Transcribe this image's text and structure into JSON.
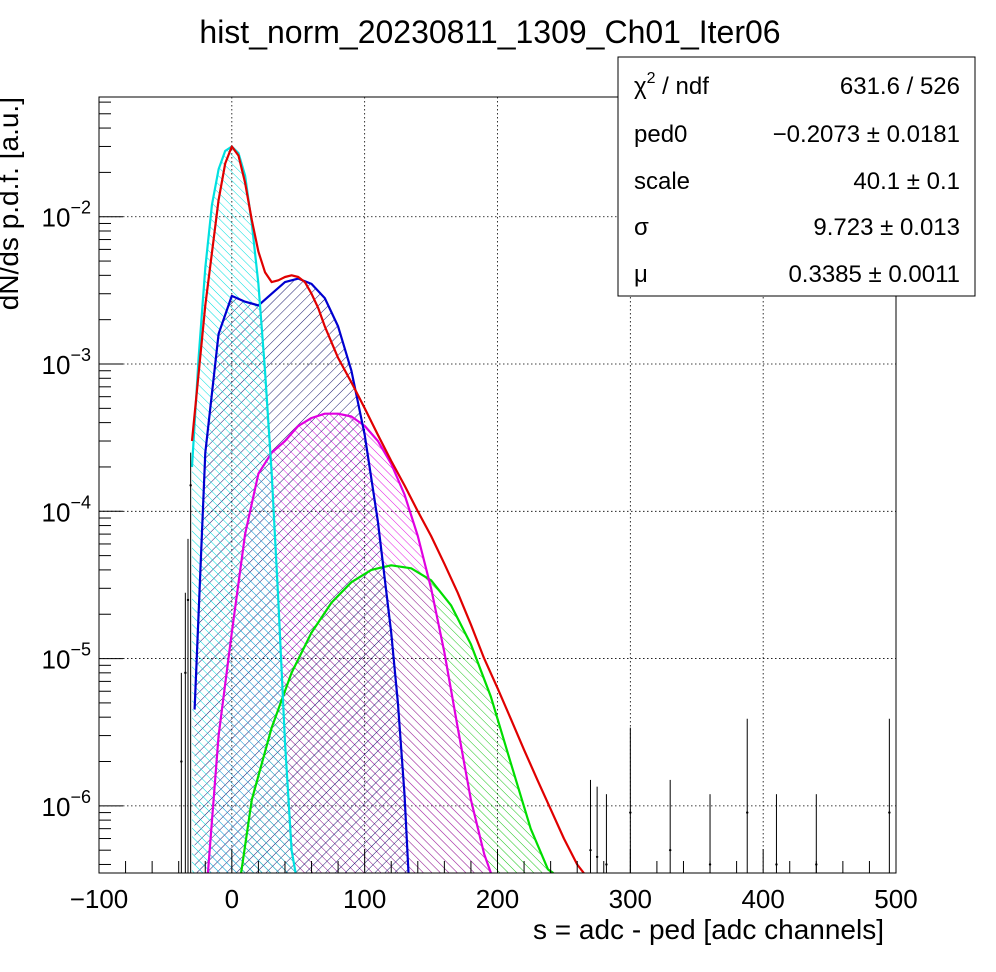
{
  "chart_data": {
    "type": "line",
    "title": "hist_norm_20230811_1309_Ch01_Iter06",
    "xlabel": "s = adc - ped [adc channels]",
    "ylabel": "dN/ds p.d.f. [a.u.]",
    "xlim": [
      -100,
      500
    ],
    "ylim": [
      3.5e-07,
      0.065
    ],
    "yscale": "log",
    "grid": true,
    "x_ticks": [
      {
        "value": -100,
        "label": "−100"
      },
      {
        "value": 0,
        "label": "0"
      },
      {
        "value": 100,
        "label": "100"
      },
      {
        "value": 200,
        "label": "200"
      },
      {
        "value": 300,
        "label": "300"
      },
      {
        "value": 400,
        "label": "400"
      },
      {
        "value": 500,
        "label": "500"
      }
    ],
    "y_ticks": [
      {
        "value": 0.01,
        "base": "10",
        "exp": "−2"
      },
      {
        "value": 0.001,
        "base": "10",
        "exp": "−3"
      },
      {
        "value": 0.0001,
        "base": "10",
        "exp": "−4"
      },
      {
        "value": 1e-05,
        "base": "10",
        "exp": "−5"
      },
      {
        "value": 1e-06,
        "base": "10",
        "exp": "−6"
      }
    ],
    "series": [
      {
        "key": "total",
        "color": "#e00000",
        "hatch": false,
        "x": [
          -30,
          -20,
          -10,
          -5,
          0,
          5,
          10,
          15,
          20,
          25,
          30,
          35,
          40,
          45,
          50,
          55,
          60,
          65,
          70,
          80,
          90,
          100,
          110,
          120,
          130,
          140,
          150,
          160,
          170,
          180,
          190,
          200,
          210,
          220,
          230,
          240,
          250,
          260,
          265
        ],
        "y": [
          0.0003,
          0.0025,
          0.013,
          0.023,
          0.03,
          0.026,
          0.017,
          0.0095,
          0.0058,
          0.0042,
          0.0036,
          0.0037,
          0.0039,
          0.004,
          0.0039,
          0.0036,
          0.003,
          0.0024,
          0.0018,
          0.0011,
          0.00075,
          0.0005,
          0.00033,
          0.00022,
          0.00015,
          0.0001,
          6.8e-05,
          4.4e-05,
          2.8e-05,
          1.7e-05,
          1e-05,
          6.3e-06,
          3.9e-06,
          2.4e-06,
          1.5e-06,
          9.5e-07,
          6e-07,
          4e-07,
          3.5e-07
        ]
      },
      {
        "key": "ped",
        "color": "#00e0e0",
        "hatch": true,
        "x": [
          -30,
          -25,
          -20,
          -15,
          -10,
          -5,
          0,
          5,
          10,
          15,
          20,
          25,
          30,
          35,
          40,
          45,
          48
        ],
        "y": [
          0.0002,
          0.0011,
          0.0045,
          0.012,
          0.021,
          0.028,
          0.03,
          0.027,
          0.019,
          0.009,
          0.0035,
          0.0009,
          0.00018,
          2.5e-05,
          2.7e-06,
          5e-07,
          3.5e-07
        ]
      },
      {
        "key": "pe1",
        "color": "#0000d0",
        "hatch": true,
        "x": [
          -28,
          -20,
          -10,
          0,
          10,
          20,
          30,
          40,
          50,
          60,
          70,
          80,
          90,
          100,
          110,
          120,
          125,
          130,
          133
        ],
        "y": [
          4.5e-06,
          0.00025,
          0.0016,
          0.0029,
          0.00265,
          0.0025,
          0.003,
          0.0036,
          0.0038,
          0.0035,
          0.0028,
          0.0018,
          0.0009,
          0.00033,
          8.5e-05,
          1.5e-05,
          5e-06,
          1.2e-06,
          3.5e-07
        ]
      },
      {
        "key": "pe2",
        "color": "#e000e0",
        "hatch": true,
        "x": [
          -18,
          -10,
          0,
          10,
          20,
          30,
          40,
          50,
          60,
          70,
          80,
          90,
          100,
          110,
          120,
          130,
          140,
          150,
          160,
          170,
          180,
          190,
          195
        ],
        "y": [
          3.5e-07,
          3e-06,
          1.5e-05,
          7e-05,
          0.00018,
          0.00025,
          0.0003,
          0.00038,
          0.00043,
          0.00046,
          0.00046,
          0.00044,
          0.00038,
          0.0003,
          0.00021,
          0.00013,
          6.8e-05,
          3e-05,
          1.1e-05,
          3.4e-06,
          1.1e-06,
          4.7e-07,
          3.5e-07
        ]
      },
      {
        "key": "pe3",
        "color": "#00dd00",
        "hatch": true,
        "x": [
          7,
          15,
          30,
          45,
          60,
          75,
          90,
          105,
          120,
          135,
          150,
          165,
          180,
          195,
          210,
          225,
          238,
          242
        ],
        "y": [
          3.5e-07,
          1.1e-06,
          3.4e-06,
          8e-06,
          1.5e-05,
          2.4e-05,
          3.3e-05,
          4e-05,
          4.3e-05,
          4.1e-05,
          3.4e-05,
          2.3e-05,
          1.25e-05,
          5.5e-06,
          1.95e-06,
          7e-07,
          3.7e-07,
          3.5e-07
        ]
      }
    ],
    "data_points": {
      "x": [
        -38,
        -35,
        -33,
        -31,
        270,
        275,
        282,
        300,
        330,
        360,
        388,
        410,
        440,
        495
      ],
      "y": [
        2e-06,
        8e-06,
        2.5e-05,
        0.00015,
        5e-07,
        4.5e-07,
        4e-07,
        9e-07,
        5e-07,
        4e-07,
        9e-07,
        4e-07,
        4e-07,
        9e-07
      ],
      "err_hi": [
        6e-06,
        2e-05,
        4e-05,
        0.0001,
        1e-06,
        9e-07,
        8e-07,
        2.5e-06,
        1e-06,
        8e-07,
        3e-06,
        8e-07,
        8e-07,
        3e-06
      ]
    }
  },
  "stats_box": {
    "rows": [
      {
        "label_main": "χ",
        "label_sup": "2",
        "label_rest": " / ndf",
        "value": "631.6 / 526"
      },
      {
        "label_main": "ped0",
        "label_sup": "",
        "label_rest": "",
        "value": "−0.2073 ± 0.0181"
      },
      {
        "label_main": "scale",
        "label_sup": "",
        "label_rest": "",
        "value": "40.1 ± 0.1"
      },
      {
        "label_main": "σ",
        "label_sup": "",
        "label_rest": "",
        "value": "9.723 ± 0.013"
      },
      {
        "label_main": "μ",
        "label_sup": "",
        "label_rest": "",
        "value": "0.3385 ± 0.0011"
      }
    ]
  }
}
